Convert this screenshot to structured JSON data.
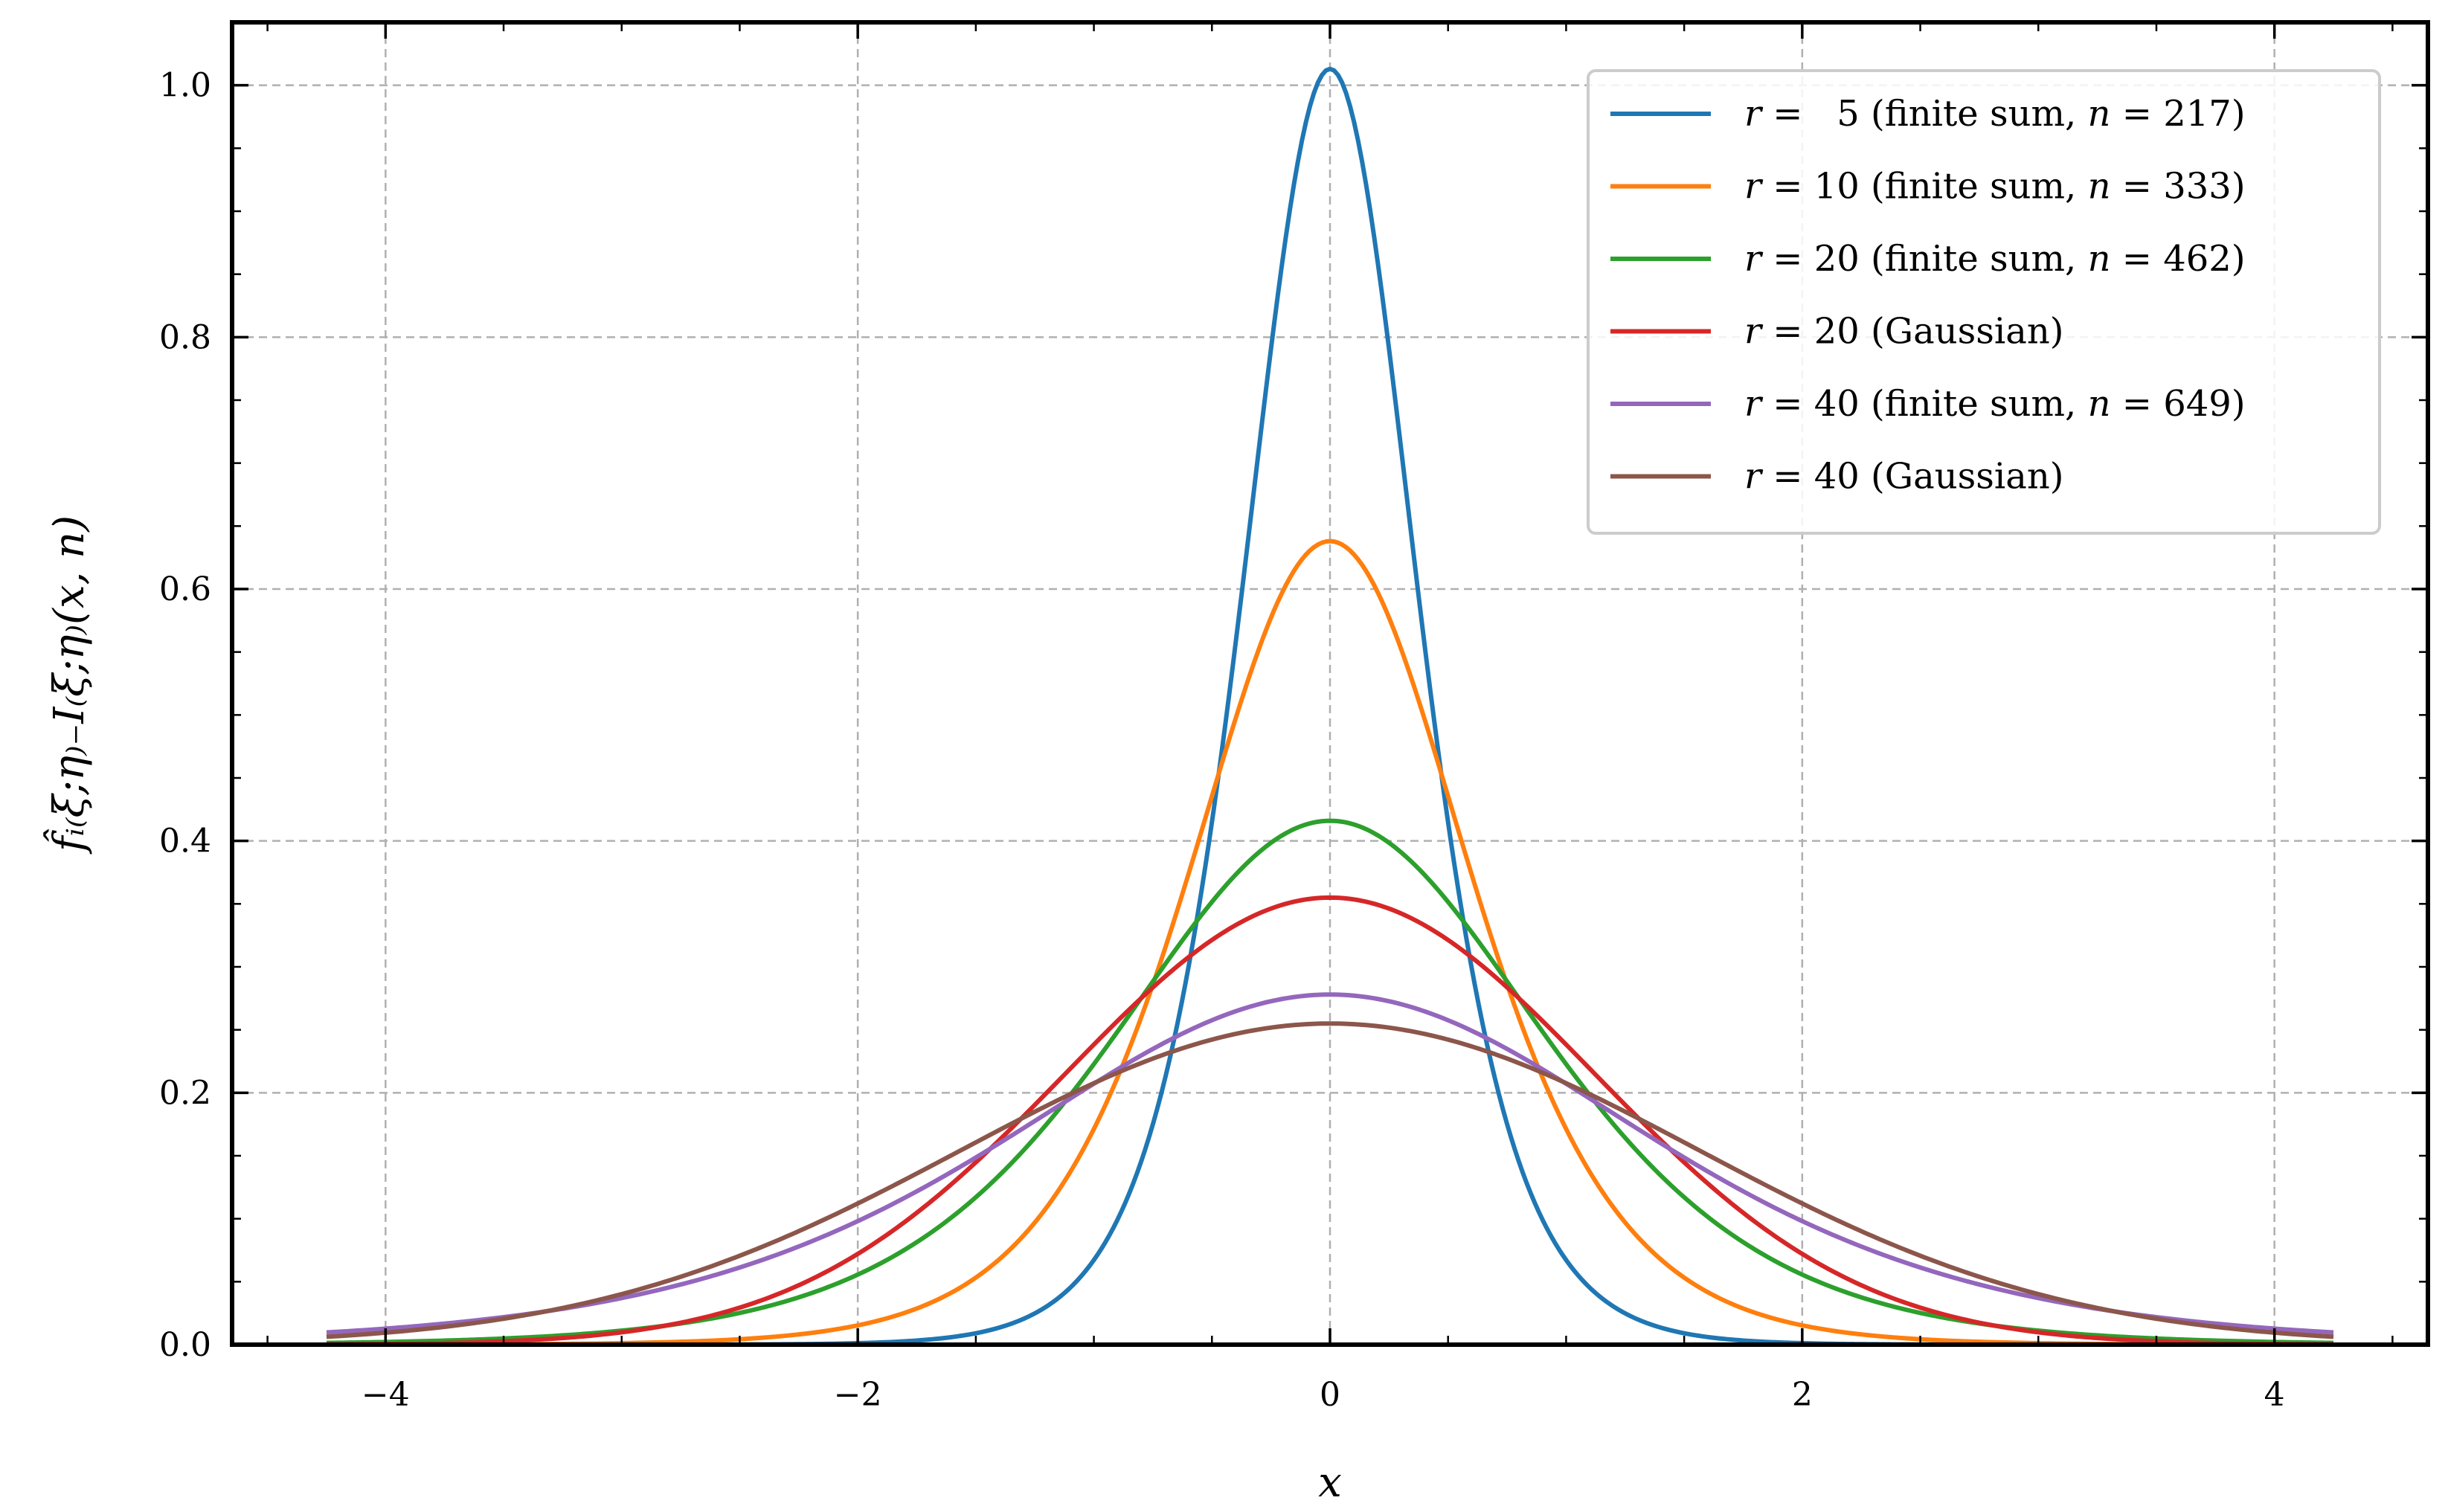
{
  "chart_data": {
    "type": "line",
    "xlabel": "x",
    "ylabel": "f̂ᵢ₍ξ;η₎₋I₍ξ;η₎(x, n)",
    "xlim": [
      -4.65,
      4.65
    ],
    "ylim": [
      0.0,
      1.05
    ],
    "x_range": [
      -4.25,
      4.25
    ],
    "x_ticks": [
      -4,
      -2,
      0,
      2,
      4
    ],
    "x_tick_labels": [
      "−4",
      "−2",
      "0",
      "2",
      "4"
    ],
    "y_ticks": [
      0.0,
      0.2,
      0.4,
      0.6,
      0.8,
      1.0
    ],
    "y_tick_labels": [
      "0.0",
      "0.2",
      "0.4",
      "0.6",
      "0.8",
      "1.0"
    ],
    "grid": true,
    "legend_position": "top-right",
    "series": [
      {
        "name": "r =   5 (finite sum, n = 217)",
        "label_parts": [
          [
            "r",
            true
          ],
          [
            " =   5 (finite sum, ",
            false
          ],
          [
            "n",
            true
          ],
          [
            " = 217)",
            false
          ]
        ],
        "color": "#1f77b4",
        "shape": "logistic",
        "peak": 1.013,
        "scale": 0.246
      },
      {
        "name": "r = 10 (finite sum, n = 333)",
        "label_parts": [
          [
            "r",
            true
          ],
          [
            " = 10 (finite sum, ",
            false
          ],
          [
            "n",
            true
          ],
          [
            " = 333)",
            false
          ]
        ],
        "color": "#ff7f0e",
        "shape": "logistic",
        "peak": 0.638,
        "scale": 0.392
      },
      {
        "name": "r = 20 (finite sum, n = 462)",
        "label_parts": [
          [
            "r",
            true
          ],
          [
            " = 20 (finite sum, ",
            false
          ],
          [
            "n",
            true
          ],
          [
            " = 462)",
            false
          ]
        ],
        "color": "#2ca02c",
        "shape": "logistic",
        "peak": 0.416,
        "scale": 0.601
      },
      {
        "name": "r = 20 (Gaussian)",
        "label_parts": [
          [
            "r",
            true
          ],
          [
            " = 20 (Gaussian)",
            false
          ]
        ],
        "color": "#d62728",
        "shape": "gaussian",
        "peak": 0.355,
        "scale": 1.12
      },
      {
        "name": "r = 40 (finite sum, n = 649)",
        "label_parts": [
          [
            "r",
            true
          ],
          [
            " = 40 (finite sum, ",
            false
          ],
          [
            "n",
            true
          ],
          [
            " = 649)",
            false
          ]
        ],
        "color": "#9467bd",
        "shape": "logistic",
        "peak": 0.278,
        "scale": 0.9
      },
      {
        "name": "r = 40 (Gaussian)",
        "label_parts": [
          [
            "r",
            true
          ],
          [
            " = 40 (Gaussian)",
            false
          ]
        ],
        "color": "#8c564b",
        "shape": "gaussian",
        "peak": 0.255,
        "scale": 1.56
      }
    ]
  }
}
